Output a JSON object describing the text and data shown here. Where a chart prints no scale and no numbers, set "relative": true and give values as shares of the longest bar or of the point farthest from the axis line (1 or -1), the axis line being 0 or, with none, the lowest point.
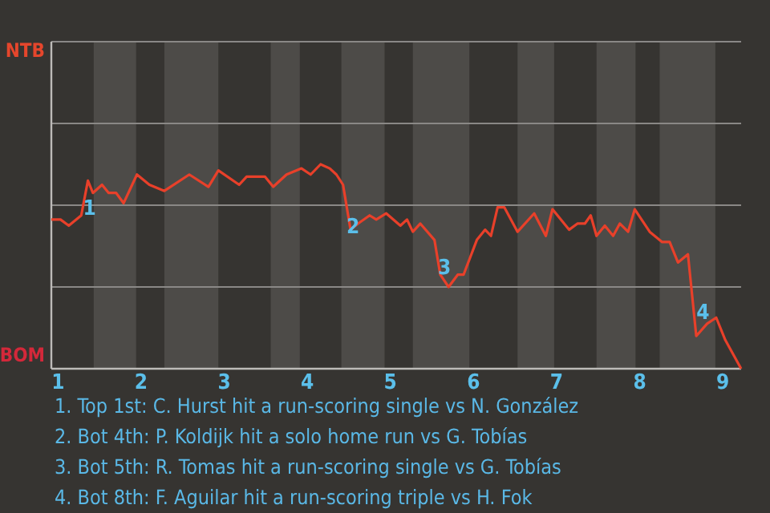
{
  "chart_data": {
    "type": "line",
    "relative": true,
    "xlim": [
      0.92,
      9.22
    ],
    "xticks": [
      1,
      2,
      3,
      4,
      5,
      6,
      7,
      8,
      9
    ],
    "marker": "none",
    "ref_lines": [
      {
        "axis": "y",
        "value": 0.4,
        "color": "#8a8886"
      },
      {
        "axis": "y",
        "value": 0.8,
        "color": "#8a8886"
      },
      {
        "axis": "y",
        "value": 1.2,
        "color": "#8a8886"
      },
      {
        "axis": "y",
        "value": 1.6,
        "color": "#8a8886"
      }
    ],
    "line_style": "solid",
    "series": [
      {
        "color": "#e8402a",
        "x": [
          0.92,
          1.03,
          1.13,
          1.28,
          1.36,
          1.42,
          1.53,
          1.61,
          1.7,
          1.79,
          1.95,
          2.1,
          2.28,
          2.58,
          2.81,
          2.93,
          3.18,
          3.27,
          3.49,
          3.59,
          3.75,
          3.93,
          4.04,
          4.16,
          4.27,
          4.35,
          4.43,
          4.52,
          4.61,
          4.75,
          4.83,
          4.95,
          5.12,
          5.2,
          5.27,
          5.36,
          5.53,
          5.6,
          5.7,
          5.81,
          5.88,
          6.04,
          6.14,
          6.21,
          6.29,
          6.37,
          6.53,
          6.73,
          6.87,
          6.95,
          7.15,
          7.25,
          7.34,
          7.41,
          7.48,
          7.58,
          7.68,
          7.76,
          7.86,
          7.94,
          8.12,
          8.27,
          8.36,
          8.46,
          8.58,
          8.68,
          8.81,
          8.92,
          9.03,
          9.22
        ],
        "values": [
          0.73,
          0.73,
          0.7,
          0.75,
          0.92,
          0.86,
          0.9,
          0.86,
          0.86,
          0.81,
          0.95,
          0.9,
          0.87,
          0.95,
          0.89,
          0.97,
          0.9,
          0.94,
          0.94,
          0.89,
          0.95,
          0.98,
          0.95,
          1,
          0.98,
          0.95,
          0.9,
          0.68,
          0.71,
          0.75,
          0.73,
          0.76,
          0.7,
          0.73,
          0.67,
          0.71,
          0.63,
          0.46,
          0.4,
          0.46,
          0.46,
          0.63,
          0.68,
          0.65,
          0.79,
          0.79,
          0.67,
          0.76,
          0.65,
          0.78,
          0.68,
          0.71,
          0.71,
          0.75,
          0.65,
          0.7,
          0.65,
          0.71,
          0.67,
          0.78,
          0.67,
          0.62,
          0.62,
          0.52,
          0.56,
          0.16,
          0.22,
          0.25,
          0.14,
          0
        ]
      }
    ],
    "bands": [
      {
        "axis": "x",
        "from": 1.43,
        "to": 1.94,
        "color": "#4d4b48"
      },
      {
        "axis": "x",
        "from": 2.28,
        "to": 2.93,
        "color": "#4d4b48"
      },
      {
        "axis": "x",
        "from": 3.56,
        "to": 3.91,
        "color": "#4d4b48"
      },
      {
        "axis": "x",
        "from": 4.41,
        "to": 4.93,
        "color": "#4d4b48"
      },
      {
        "axis": "x",
        "from": 5.27,
        "to": 5.95,
        "color": "#4d4b48"
      },
      {
        "axis": "x",
        "from": 6.53,
        "to": 6.97,
        "color": "#4d4b48"
      },
      {
        "axis": "x",
        "from": 7.48,
        "to": 7.95,
        "color": "#4d4b48"
      },
      {
        "axis": "x",
        "from": 8.24,
        "to": 8.91,
        "color": "#4d4b48"
      }
    ],
    "annotations": [
      "NTB",
      "BOM",
      {
        "text": "1",
        "x": 1.38,
        "y": 0.78
      },
      {
        "text": "2",
        "x": 4.55,
        "y": 0.69
      },
      {
        "text": "3",
        "x": 5.65,
        "y": 0.49
      },
      {
        "text": "4",
        "x": 8.76,
        "y": 0.27
      },
      "1. Top 1st: C. Hurst hit a run-scoring single vs N. González",
      "2. Bot 4th: P. Koldijk hit a solo home run vs G. Tobías",
      "3. Bot 5th: R. Tomas hit a run-scoring single vs G. Tobías",
      "4. Bot 8th: F. Aguilar hit a run-scoring triple vs H. Fok"
    ]
  }
}
